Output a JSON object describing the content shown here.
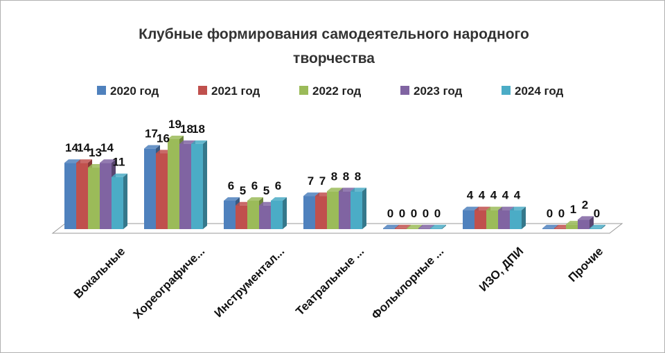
{
  "chart_data": {
    "type": "bar",
    "title_lines": [
      "Клубные формирования самодеятельного народного",
      "творчества"
    ],
    "categories": [
      "Вокальные",
      "Хореографиче...",
      "Инструментал...",
      "Театральные ...",
      "Фольклорные ...",
      "ИЗО, ДПИ",
      "Прочие"
    ],
    "series": [
      {
        "name": "2020 год",
        "color": "#4f81bd",
        "values": [
          14,
          17,
          6,
          7,
          0,
          4,
          0
        ]
      },
      {
        "name": "2021 год",
        "color": "#c0504d",
        "values": [
          14,
          16,
          5,
          7,
          0,
          4,
          0
        ]
      },
      {
        "name": "2022 год",
        "color": "#9bbb59",
        "values": [
          13,
          19,
          6,
          8,
          0,
          4,
          1
        ]
      },
      {
        "name": "2023 год",
        "color": "#8064a2",
        "values": [
          14,
          18,
          5,
          8,
          0,
          4,
          2
        ]
      },
      {
        "name": "2024 год",
        "color": "#4bacc6",
        "values": [
          11,
          18,
          6,
          8,
          0,
          4,
          0
        ]
      }
    ],
    "legend_position": "top",
    "grid": false,
    "ylim": [
      0,
      19
    ]
  }
}
